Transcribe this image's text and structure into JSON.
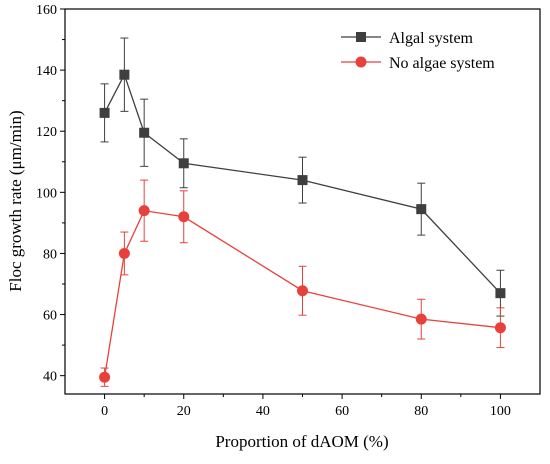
{
  "chart_data": {
    "type": "line",
    "title": "",
    "xlabel": "Proportion of dAOM (%)",
    "ylabel": "Floc growth rate (μm/min)",
    "xlim": [
      -10,
      110
    ],
    "ylim": [
      34,
      160
    ],
    "xticks": [
      0,
      20,
      40,
      60,
      80,
      100
    ],
    "yticks": [
      40,
      60,
      80,
      100,
      120,
      140,
      160
    ],
    "x": [
      0,
      5,
      10,
      20,
      50,
      80,
      100
    ],
    "grid": false,
    "legend_position": "top-right",
    "series": [
      {
        "name": "Algal system",
        "color": "#3f3f3f",
        "marker": "square",
        "values": [
          126,
          138.5,
          119.5,
          109.5,
          104,
          94.5,
          67
        ],
        "error": [
          9.5,
          12,
          11,
          8,
          7.5,
          8.5,
          7.5
        ]
      },
      {
        "name": "No algae system",
        "color": "#e8413c",
        "marker": "circle",
        "values": [
          39.5,
          80,
          94,
          92,
          67.8,
          58.5,
          55.7
        ],
        "error": [
          3,
          7,
          10,
          8.5,
          8,
          6.5,
          6.5
        ]
      }
    ]
  }
}
